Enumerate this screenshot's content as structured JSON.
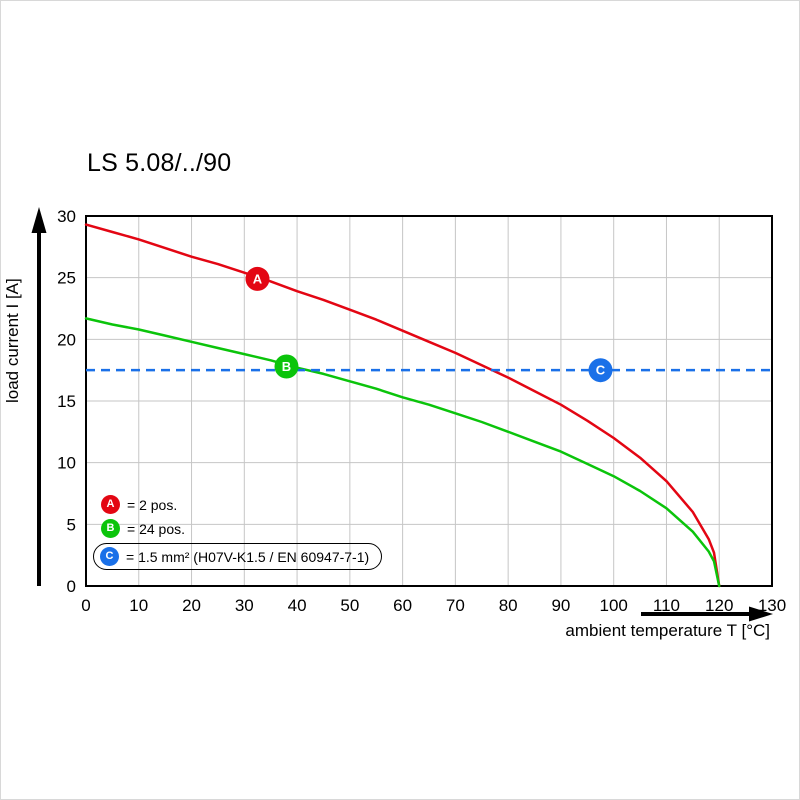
{
  "chart_data": {
    "type": "line",
    "title": "LS 5.08/../90",
    "xlabel": "ambient temperature T [°C]",
    "ylabel": "load current I [A]",
    "xlim": [
      0,
      130
    ],
    "ylim": [
      0,
      30
    ],
    "x_ticks": [
      0,
      10,
      20,
      30,
      40,
      50,
      60,
      70,
      80,
      90,
      100,
      110,
      120,
      130
    ],
    "y_ticks": [
      0,
      5,
      10,
      15,
      20,
      25,
      30
    ],
    "grid": true,
    "grid_color": "#c6c6c6",
    "legend_position": "lower-left-inside",
    "series": [
      {
        "name": "A",
        "label": "= 2 pos.",
        "color": "#e30613",
        "style": "solid",
        "points": [
          [
            0,
            29.3
          ],
          [
            5,
            28.7
          ],
          [
            10,
            28.1
          ],
          [
            15,
            27.4
          ],
          [
            20,
            26.7
          ],
          [
            25,
            26.1
          ],
          [
            30,
            25.4
          ],
          [
            35,
            24.7
          ],
          [
            40,
            23.9
          ],
          [
            45,
            23.2
          ],
          [
            50,
            22.4
          ],
          [
            55,
            21.6
          ],
          [
            60,
            20.7
          ],
          [
            65,
            19.8
          ],
          [
            70,
            18.9
          ],
          [
            75,
            17.9
          ],
          [
            80,
            16.9
          ],
          [
            85,
            15.8
          ],
          [
            90,
            14.7
          ],
          [
            95,
            13.4
          ],
          [
            100,
            12.0
          ],
          [
            105,
            10.4
          ],
          [
            110,
            8.5
          ],
          [
            115,
            6.0
          ],
          [
            118,
            3.8
          ],
          [
            119,
            2.7
          ],
          [
            120,
            0
          ]
        ],
        "marker": {
          "x": 32.5,
          "y": 24.9,
          "letter": "A"
        }
      },
      {
        "name": "B",
        "label": "= 24 pos.",
        "color": "#0bc40b",
        "style": "solid",
        "points": [
          [
            0,
            21.7
          ],
          [
            5,
            21.2
          ],
          [
            10,
            20.8
          ],
          [
            15,
            20.3
          ],
          [
            20,
            19.8
          ],
          [
            25,
            19.3
          ],
          [
            30,
            18.8
          ],
          [
            35,
            18.3
          ],
          [
            40,
            17.7
          ],
          [
            45,
            17.2
          ],
          [
            50,
            16.6
          ],
          [
            55,
            16.0
          ],
          [
            60,
            15.3
          ],
          [
            65,
            14.7
          ],
          [
            70,
            14.0
          ],
          [
            75,
            13.3
          ],
          [
            80,
            12.5
          ],
          [
            85,
            11.7
          ],
          [
            90,
            10.9
          ],
          [
            95,
            9.9
          ],
          [
            100,
            8.9
          ],
          [
            105,
            7.7
          ],
          [
            110,
            6.3
          ],
          [
            115,
            4.4
          ],
          [
            118,
            2.8
          ],
          [
            119,
            2.0
          ],
          [
            120,
            0
          ]
        ],
        "marker": {
          "x": 38,
          "y": 17.8,
          "letter": "B"
        }
      },
      {
        "name": "C",
        "label": "= 1.5 mm² (H07V-K1.5 / EN 60947-7-1)",
        "color": "#1a70e8",
        "style": "dashed-horizontal",
        "y_const": 17.5,
        "marker": {
          "x": 97.5,
          "y": 17.5,
          "letter": "C"
        }
      }
    ],
    "legend": [
      {
        "letter": "A",
        "color": "#e30613",
        "text": "= 2 pos.",
        "boxed": false
      },
      {
        "letter": "B",
        "color": "#0bc40b",
        "text": "= 24 pos.",
        "boxed": false
      },
      {
        "letter": "C",
        "color": "#1a70e8",
        "text": "= 1.5 mm² (H07V-K1.5 / EN 60947-7-1)",
        "boxed": true
      }
    ]
  }
}
